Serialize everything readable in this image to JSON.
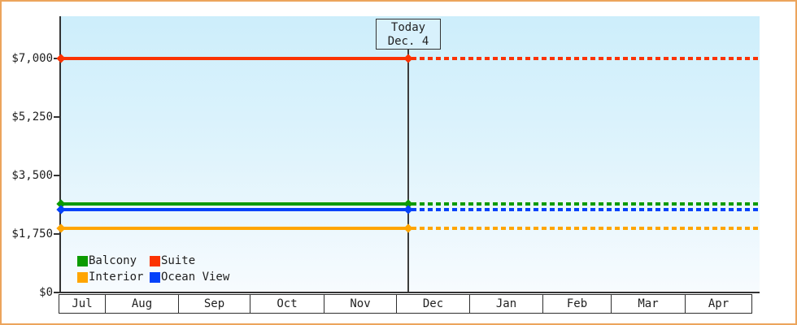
{
  "chart_data": {
    "type": "line",
    "title": "",
    "x_categories": [
      "Jul",
      "Aug",
      "Sep",
      "Oct",
      "Nov",
      "Dec",
      "Jan",
      "Feb",
      "Mar",
      "Apr"
    ],
    "y_axis": {
      "tick_labels": [
        "$7,000",
        "$5,250",
        "$3,500",
        "$1,750",
        "$0"
      ],
      "tick_values": [
        7000,
        5250,
        3500,
        1750,
        0
      ],
      "ylim": [
        0,
        8250
      ],
      "grid": "off"
    },
    "series": [
      {
        "name": "Balcony",
        "color": "#0c9b00",
        "value": 2650
      },
      {
        "name": "Suite",
        "color": "#fb3302",
        "value": 7000
      },
      {
        "name": "Interior",
        "color": "#ffa500",
        "value": 1920
      },
      {
        "name": "Ocean View",
        "color": "#0442fa",
        "value": 2480
      }
    ],
    "line_style": {
      "past": "solid",
      "future": "dashed",
      "marker": "diamond"
    },
    "today": {
      "label": "Today",
      "date": "Dec. 4"
    },
    "legend_position": "bottom-left inside plot"
  },
  "style_colors": {
    "page_border": "#eca45c",
    "plot_bg_top": "#cdeefb",
    "plot_bg_bottom": "#f7fbfe",
    "axis": "#333333",
    "text": "#1f1f1f",
    "today_box_fill": "#d8f1fc"
  }
}
